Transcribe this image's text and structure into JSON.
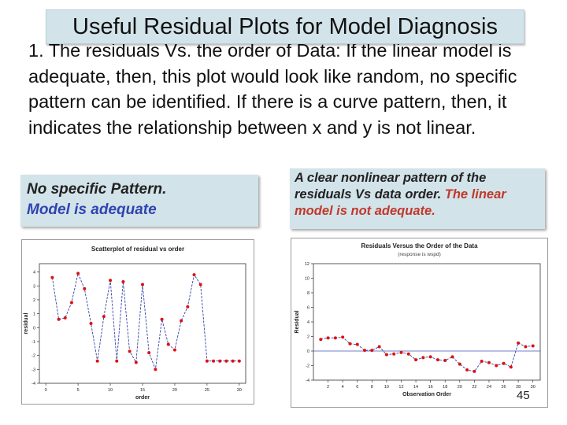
{
  "slide": {
    "title": "Useful Residual Plots for Model Diagnosis",
    "paragraph": "1. The residuals Vs. the order of Data: If the linear model is adequate, then, this plot would look like random, no specific pattern can be identified. If there is a curve pattern, then, it indicates the relationship between x and y is not linear.",
    "callout_left": {
      "line1": "No specific Pattern.",
      "line2": "Model is adequate"
    },
    "callout_right": {
      "part1": "A clear nonlinear pattern of the residuals Vs data order. ",
      "part2": "The",
      "part3": " linear model is not adequate."
    },
    "page_number": "45"
  },
  "chart_data": [
    {
      "type": "line",
      "title": "Scatterplot of residual vs order",
      "xlabel": "order",
      "ylabel": "residual",
      "xlim": [
        -1,
        31
      ],
      "ylim": [
        -4,
        4.6
      ],
      "xticks": [
        0,
        5,
        10,
        15,
        20,
        25,
        30
      ],
      "yticks": [
        -4,
        -3,
        -2,
        -1,
        0,
        1,
        2,
        3,
        4
      ],
      "line_color": "#3344aa",
      "marker_color": "#dd1111",
      "x": [
        1,
        2,
        3,
        4,
        5,
        6,
        7,
        8,
        9,
        10,
        11,
        12,
        13,
        14,
        15,
        16,
        17,
        18,
        19,
        20,
        21,
        22,
        23,
        24,
        25,
        26,
        27,
        28,
        29,
        30
      ],
      "y": [
        3.6,
        0.6,
        0.7,
        1.8,
        3.9,
        2.8,
        0.3,
        -2.4,
        0.8,
        3.4,
        -2.4,
        3.3,
        -1.7,
        -2.5,
        3.1,
        -1.8,
        -3.0,
        0.6,
        -1.2,
        -1.6,
        0.5,
        1.5,
        3.8,
        3.1,
        -2.4,
        -2.4,
        -2.4,
        -2.4,
        -2.4,
        -2.4
      ]
    },
    {
      "type": "line",
      "title": "Residuals Versus the Order of the Data",
      "subtitle": "(response is wspd)",
      "xlabel": "Observation Order",
      "ylabel": "Residual",
      "xlim": [
        0,
        31
      ],
      "ylim": [
        -4,
        12
      ],
      "xticks": [
        2,
        4,
        6,
        8,
        10,
        12,
        14,
        16,
        18,
        20,
        22,
        24,
        26,
        28,
        30
      ],
      "yticks": [
        -4,
        -2,
        0,
        2,
        4,
        6,
        8,
        10,
        12
      ],
      "reference_line": 0,
      "line_color": "#3344aa",
      "marker_color": "#dd1111",
      "x": [
        1,
        2,
        3,
        4,
        5,
        6,
        7,
        8,
        9,
        10,
        11,
        12,
        13,
        14,
        15,
        16,
        17,
        18,
        19,
        20,
        21,
        22,
        23,
        24,
        25,
        26,
        27,
        28,
        29,
        30
      ],
      "y": [
        1.6,
        1.8,
        1.8,
        1.9,
        1.0,
        0.9,
        0.1,
        0.1,
        0.6,
        -0.5,
        -0.4,
        -0.2,
        -0.4,
        -1.2,
        -0.9,
        -0.8,
        -1.2,
        -1.3,
        -0.8,
        -1.8,
        -2.6,
        -2.8,
        -1.4,
        -1.6,
        -2.0,
        -1.7,
        -2.2,
        1.1,
        0.6,
        0.7
      ]
    }
  ]
}
